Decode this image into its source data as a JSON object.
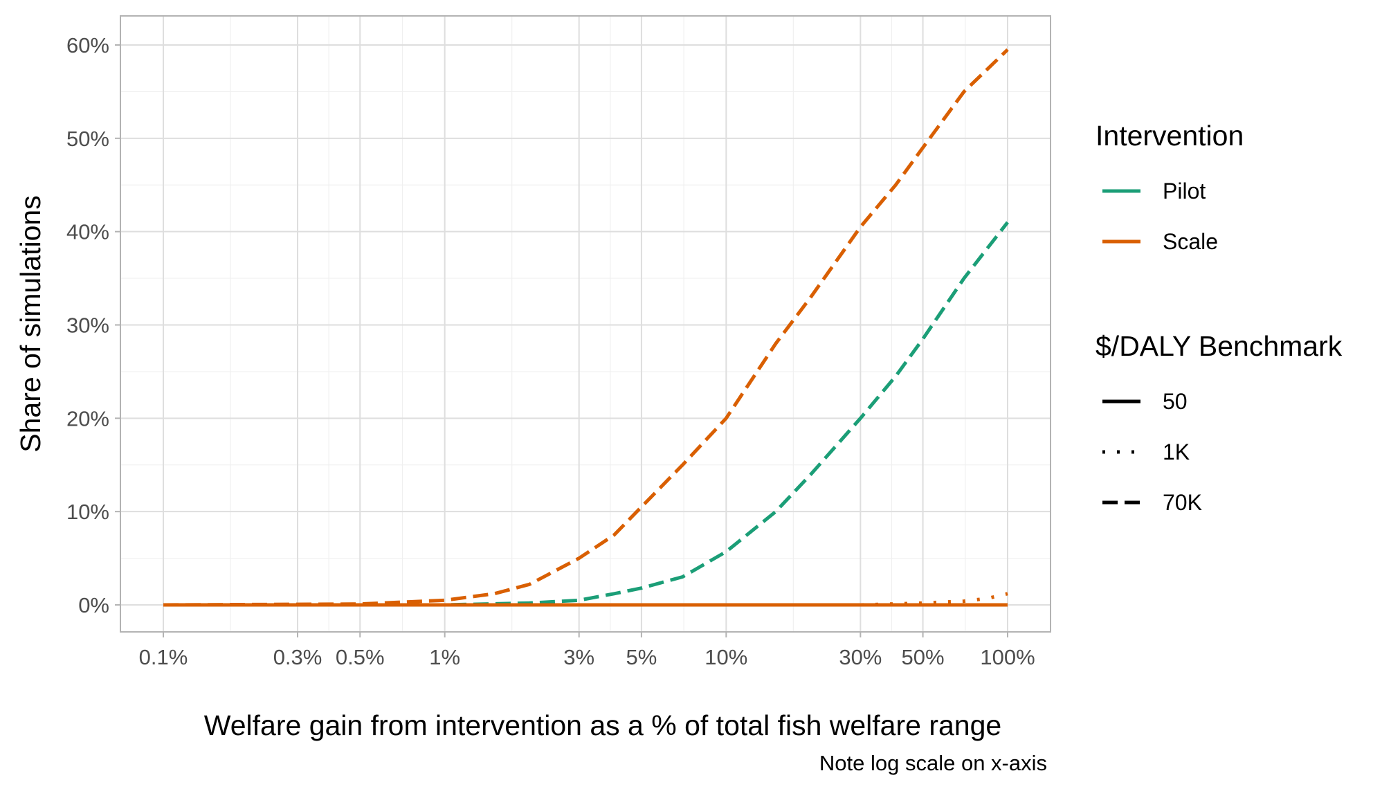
{
  "chart_data": {
    "type": "line",
    "xlabel": "Welfare gain from intervention as a % of total fish welfare range",
    "ylabel": "Share of simulations",
    "caption": "Note log scale on x-axis",
    "x_scale": "log",
    "xlim": [
      0.001,
      1
    ],
    "ylim": [
      -0.03,
      0.625
    ],
    "grid": true,
    "x_ticks": [
      0.001,
      0.003,
      0.005,
      0.01,
      0.03,
      0.05,
      0.1,
      0.3,
      0.5,
      1
    ],
    "x_tick_labels": [
      "0.1%",
      "0.3%",
      "0.5%",
      "1%",
      "3%",
      "5%",
      "10%",
      "30%",
      "50%",
      "100%"
    ],
    "y_ticks": [
      0,
      0.1,
      0.2,
      0.3,
      0.4,
      0.5,
      0.6
    ],
    "y_tick_labels": [
      "0%",
      "10%",
      "20%",
      "30%",
      "40%",
      "50%",
      "60%"
    ],
    "legend_placement": "right",
    "legends": [
      {
        "title": "Intervention",
        "items": [
          {
            "label": "Pilot",
            "color": "#1b9e77"
          },
          {
            "label": "Scale",
            "color": "#d95f02"
          }
        ]
      },
      {
        "title": "$/DALY Benchmark",
        "items": [
          {
            "label": "50",
            "linetype": "solid"
          },
          {
            "label": "1K",
            "linetype": "dotted"
          },
          {
            "label": "70K",
            "linetype": "dashed"
          }
        ]
      }
    ],
    "series": [
      {
        "intervention": "Pilot",
        "benchmark": "70K",
        "color": "#1b9e77",
        "linetype": "dashed",
        "x": [
          0.001,
          0.003,
          0.01,
          0.02,
          0.03,
          0.04,
          0.05,
          0.07,
          0.1,
          0.15,
          0.2,
          0.3,
          0.4,
          0.5,
          0.7,
          1.0
        ],
        "y": [
          0,
          0,
          0,
          0.002,
          0.005,
          0.012,
          0.018,
          0.03,
          0.057,
          0.1,
          0.14,
          0.2,
          0.245,
          0.285,
          0.35,
          0.41
        ]
      },
      {
        "intervention": "Scale",
        "benchmark": "70K",
        "color": "#d95f02",
        "linetype": "dashed",
        "x": [
          0.001,
          0.005,
          0.01,
          0.015,
          0.02,
          0.03,
          0.04,
          0.05,
          0.07,
          0.1,
          0.15,
          0.2,
          0.3,
          0.4,
          0.5,
          0.7,
          1.0
        ],
        "y": [
          0,
          0.001,
          0.005,
          0.012,
          0.022,
          0.05,
          0.075,
          0.105,
          0.15,
          0.2,
          0.28,
          0.33,
          0.405,
          0.45,
          0.49,
          0.55,
          0.595
        ]
      },
      {
        "intervention": "Scale",
        "benchmark": "1K",
        "color": "#d95f02",
        "linetype": "dotted",
        "x": [
          0.001,
          0.3,
          0.5,
          0.7,
          0.85,
          1.0
        ],
        "y": [
          0,
          0,
          0.002,
          0.004,
          0.007,
          0.012
        ]
      },
      {
        "intervention": "Pilot",
        "benchmark": "1K",
        "color": "#1b9e77",
        "linetype": "dotted",
        "x": [
          0.001,
          1.0
        ],
        "y": [
          0,
          0
        ]
      },
      {
        "intervention": "Pilot",
        "benchmark": "50",
        "color": "#1b9e77",
        "linetype": "solid",
        "x": [
          0.001,
          1.0
        ],
        "y": [
          0,
          0
        ]
      },
      {
        "intervention": "Scale",
        "benchmark": "50",
        "color": "#d95f02",
        "linetype": "solid",
        "x": [
          0.001,
          1.0
        ],
        "y": [
          0,
          0
        ]
      }
    ]
  }
}
